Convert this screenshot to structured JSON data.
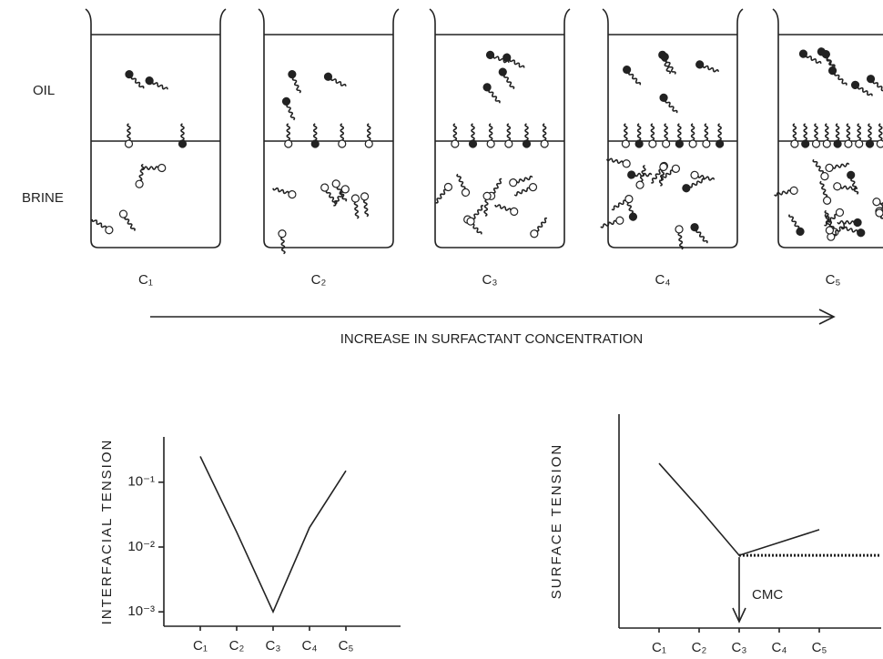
{
  "phase_labels": [
    "OIL",
    "BRINE"
  ],
  "beakers": [
    {
      "label": "C₁"
    },
    {
      "label": "C₂"
    },
    {
      "label": "C₃"
    },
    {
      "label": "C₄"
    },
    {
      "label": "C₅"
    }
  ],
  "arrow_label": "INCREASE IN SURFACTANT CONCENTRATION",
  "chart_data": [
    {
      "type": "line",
      "y_label": "INTERFACIAL TENSION",
      "yscale": "log",
      "categories": [
        "C₁",
        "C₂",
        "C₃",
        "C₄",
        "C₅"
      ],
      "values": [
        0.25,
        0.017,
        0.001,
        0.02,
        0.15
      ],
      "ylim": [
        0.0006,
        0.5
      ],
      "yticks": [
        {
          "value": 0.1,
          "label": "10⁻¹"
        },
        {
          "value": 0.01,
          "label": "10⁻²"
        },
        {
          "value": 0.001,
          "label": "10⁻³"
        }
      ],
      "color": "#222"
    },
    {
      "type": "line",
      "y_label": "SURFACE TENSION",
      "categories": [
        "C₁",
        "C₂",
        "C₃",
        "C₄",
        "C₅"
      ],
      "values": [
        77,
        56,
        34,
        40,
        46
      ],
      "ylim": [
        0,
        100
      ],
      "annotation": "CMC",
      "color": "#222"
    }
  ]
}
